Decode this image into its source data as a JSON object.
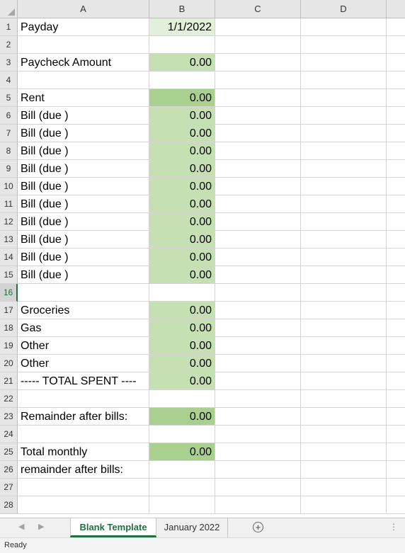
{
  "columns": [
    "A",
    "B",
    "C",
    "D"
  ],
  "selected_row": "16",
  "colors": {
    "fill_light": "#e2efda",
    "fill_mid": "#c6e0b4",
    "fill_dark": "#a9d08e",
    "accent": "#1e6f42"
  },
  "rows": [
    {
      "num": "1",
      "a": "Payday",
      "b": "1/1/2022",
      "fill": "light"
    },
    {
      "num": "2",
      "a": "",
      "b": "",
      "fill": ""
    },
    {
      "num": "3",
      "a": "Paycheck Amount",
      "b": "0.00",
      "fill": "mid"
    },
    {
      "num": "4",
      "a": "",
      "b": "",
      "fill": ""
    },
    {
      "num": "5",
      "a": "Rent",
      "b": "0.00",
      "fill": "dark"
    },
    {
      "num": "6",
      "a": "Bill (due )",
      "b": "0.00",
      "fill": "mid"
    },
    {
      "num": "7",
      "a": "Bill (due )",
      "b": "0.00",
      "fill": "mid"
    },
    {
      "num": "8",
      "a": "Bill (due )",
      "b": "0.00",
      "fill": "mid"
    },
    {
      "num": "9",
      "a": "Bill (due )",
      "b": "0.00",
      "fill": "mid"
    },
    {
      "num": "10",
      "a": "Bill (due )",
      "b": "0.00",
      "fill": "mid"
    },
    {
      "num": "11",
      "a": "Bill (due )",
      "b": "0.00",
      "fill": "mid"
    },
    {
      "num": "12",
      "a": "Bill (due )",
      "b": "0.00",
      "fill": "mid"
    },
    {
      "num": "13",
      "a": "Bill (due )",
      "b": "0.00",
      "fill": "mid"
    },
    {
      "num": "14",
      "a": "Bill (due )",
      "b": "0.00",
      "fill": "mid"
    },
    {
      "num": "15",
      "a": "Bill (due )",
      "b": "0.00",
      "fill": "mid"
    },
    {
      "num": "16",
      "a": "",
      "b": "",
      "fill": ""
    },
    {
      "num": "17",
      "a": "Groceries",
      "b": "0.00",
      "fill": "mid"
    },
    {
      "num": "18",
      "a": "Gas",
      "b": "0.00",
      "fill": "mid"
    },
    {
      "num": "19",
      "a": "Other",
      "b": "0.00",
      "fill": "mid"
    },
    {
      "num": "20",
      "a": "Other",
      "b": "0.00",
      "fill": "mid"
    },
    {
      "num": "21",
      "a": "----- TOTAL SPENT ----",
      "b": "0.00",
      "fill": "mid"
    },
    {
      "num": "22",
      "a": "",
      "b": "",
      "fill": ""
    },
    {
      "num": "23",
      "a": "Remainder after bills:",
      "b": "0.00",
      "fill": "dark"
    },
    {
      "num": "24",
      "a": "",
      "b": "",
      "fill": ""
    },
    {
      "num": "25",
      "a": "Total monthly",
      "b": "0.00",
      "fill": "dark"
    },
    {
      "num": "26",
      "a": "remainder after bills:",
      "b": "",
      "fill": ""
    },
    {
      "num": "27",
      "a": "",
      "b": "",
      "fill": ""
    },
    {
      "num": "28",
      "a": "",
      "b": "",
      "fill": ""
    }
  ],
  "tabs": [
    {
      "label": "Blank Template",
      "active": true
    },
    {
      "label": "January 2022",
      "active": false
    }
  ],
  "icons": {
    "prev": "chevron-left-icon",
    "next": "chevron-right-icon",
    "add": "plus-circle-icon",
    "more": "vertical-ellipsis-icon"
  },
  "status": {
    "text": "Ready"
  }
}
